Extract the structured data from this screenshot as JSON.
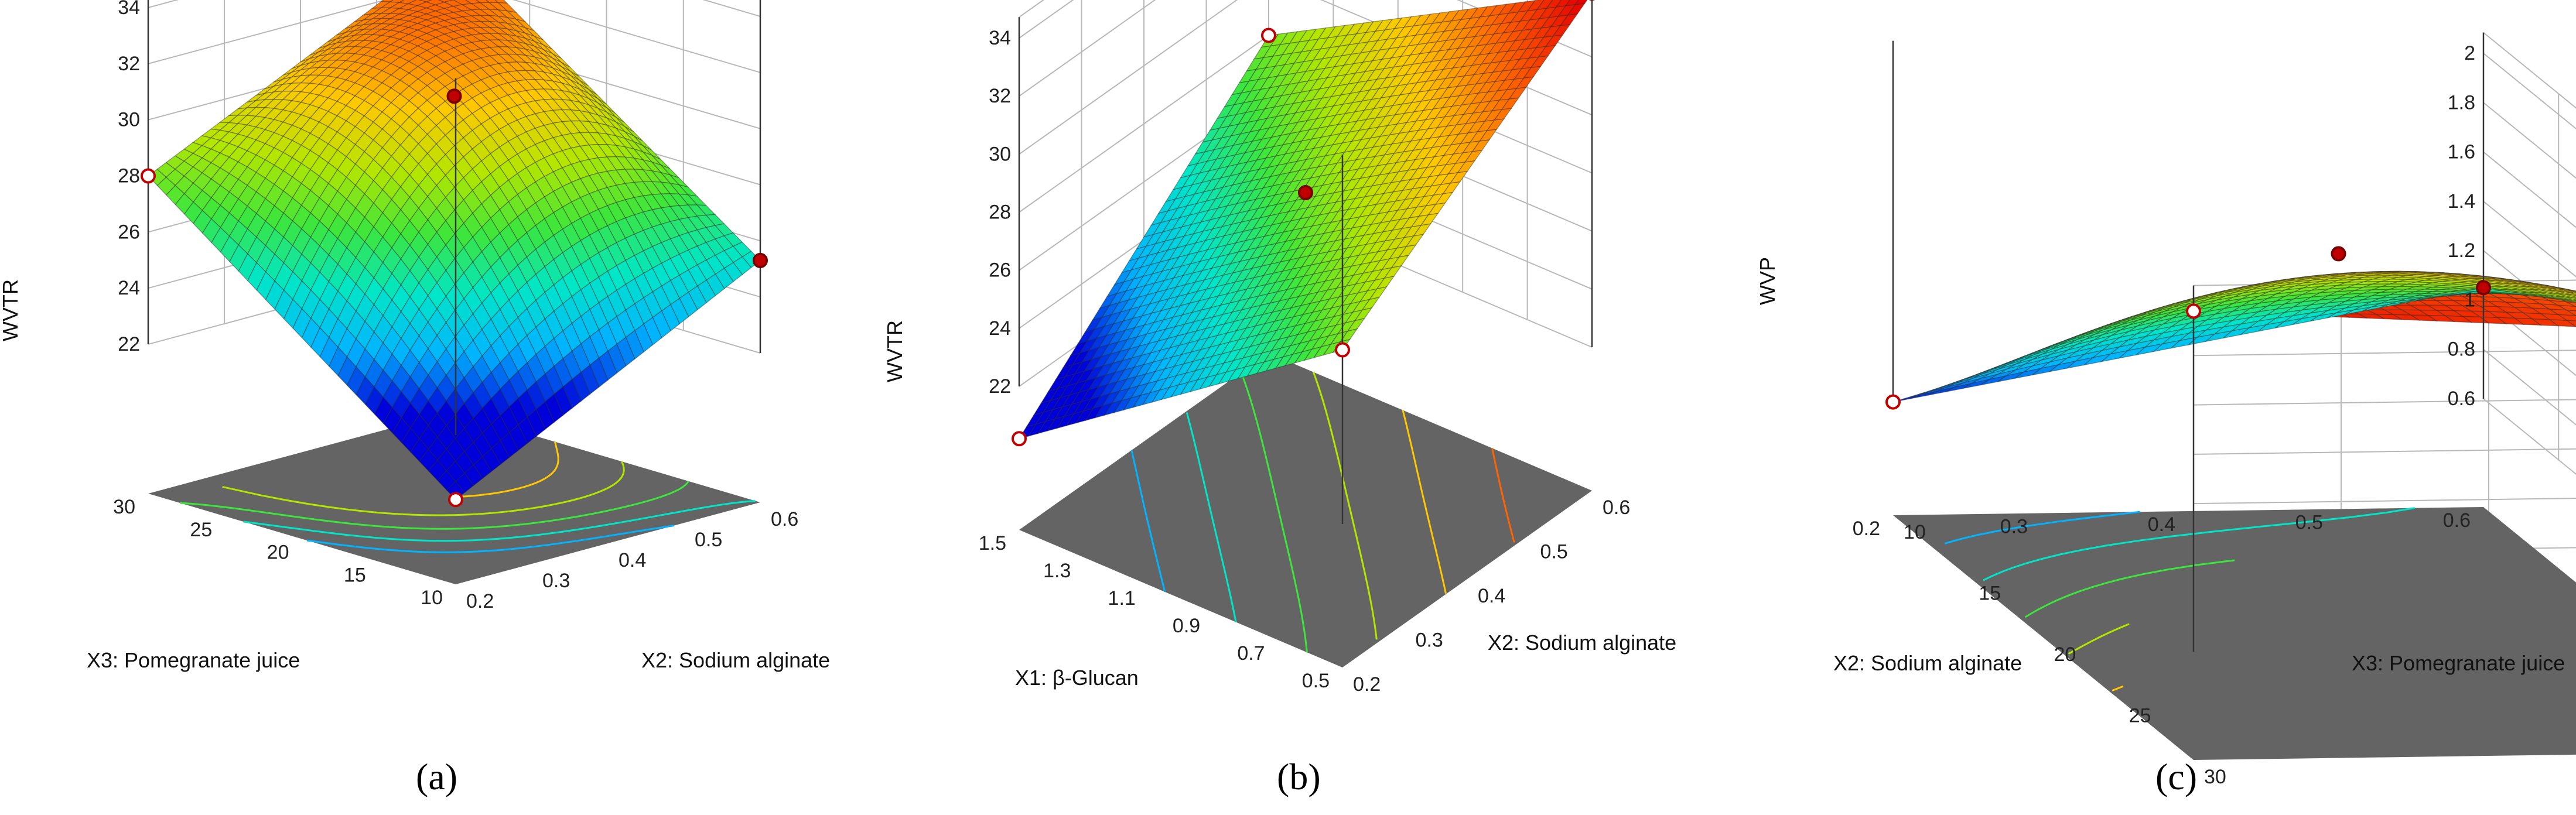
{
  "colors": {
    "floor": "#646464",
    "grid": "#b8b8b8",
    "point_fill": "#c00000",
    "point_outline": "#7a0000",
    "colormap": [
      "#0000d8",
      "#00b4ff",
      "#00e6c8",
      "#3ce63c",
      "#b4e600",
      "#ffc800",
      "#ff6400",
      "#e60000"
    ]
  },
  "chart_data": [
    {
      "type": "surface3d",
      "panel_label": "(a)",
      "zlabel": "WVTR",
      "xlabel": "X2: Sodium alginate",
      "ylabel": "X3: Pomegranate juice",
      "x_range": [
        0.2,
        0.6
      ],
      "y_range": [
        10,
        30
      ],
      "z_range": [
        22,
        34
      ],
      "x_ticks": [
        "0.2",
        "0.3",
        "0.4",
        "0.5",
        "0.6"
      ],
      "y_ticks": [
        "10",
        "15",
        "20",
        "25",
        "30"
      ],
      "z_ticks": [
        "22",
        "24",
        "26",
        "28",
        "30",
        "32",
        "34"
      ],
      "corners_z": {
        "x_min_y_min": 19.7,
        "x_max_y_min": 25.3,
        "x_min_y_max": 28.0,
        "x_max_y_max": 33.2
      },
      "center_z": 30.5,
      "design_points": [
        {
          "x": 0.2,
          "y": 10,
          "z": 19.7,
          "above_surface": false
        },
        {
          "x": 0.6,
          "y": 10,
          "z": 25.3,
          "above_surface": true
        },
        {
          "x": 0.2,
          "y": 30,
          "z": 28.0,
          "above_surface": false
        },
        {
          "x": 0.4,
          "y": 20,
          "z": 31.0,
          "above_surface": true
        }
      ]
    },
    {
      "type": "surface3d",
      "panel_label": "(b)",
      "zlabel": "WVTR",
      "xlabel": "X2: Sodium alginate",
      "ylabel": "X1: β-Glucan",
      "x_range": [
        0.2,
        0.6
      ],
      "y_range": [
        0.5,
        1.5
      ],
      "z_range": [
        22,
        34
      ],
      "x_ticks": [
        "0.2",
        "0.3",
        "0.4",
        "0.5",
        "0.6"
      ],
      "y_ticks": [
        "0.5",
        "0.7",
        "0.9",
        "1.1",
        "1.3",
        "1.5"
      ],
      "z_ticks": [
        "22",
        "24",
        "26",
        "28",
        "30",
        "32",
        "34"
      ],
      "corners_z": {
        "x_min_y_min": 28.0,
        "x_max_y_min": 34.2,
        "x_min_y_max": 20.2,
        "x_max_y_max": 28.0
      },
      "center_z": 27.8,
      "design_points": [
        {
          "x": 0.2,
          "y": 0.5,
          "z": 28.0,
          "above_surface": false
        },
        {
          "x": 0.6,
          "y": 0.5,
          "z": 34.2,
          "above_surface": true
        },
        {
          "x": 0.2,
          "y": 1.5,
          "z": 20.2,
          "above_surface": false
        },
        {
          "x": 0.6,
          "y": 1.5,
          "z": 28.0,
          "above_surface": false
        },
        {
          "x": 0.4,
          "y": 1.0,
          "z": 28.0,
          "above_surface": true
        }
      ]
    },
    {
      "type": "surface3d",
      "panel_label": "(c)",
      "zlabel": "WVP",
      "xlabel": "X3: Pomegranate juice",
      "ylabel": "X2: Sodium alginate",
      "x_range": [
        10,
        30
      ],
      "y_range": [
        0.2,
        0.6
      ],
      "z_range": [
        0.6,
        2.0
      ],
      "x_ticks": [
        "10",
        "15",
        "20",
        "25",
        "30"
      ],
      "y_ticks": [
        "0.2",
        "0.3",
        "0.4",
        "0.5",
        "0.6"
      ],
      "z_ticks": [
        "0.6",
        "0.8",
        "1",
        "1.2",
        "1.4",
        "1.6",
        "1.8",
        "2"
      ],
      "corners_z": {
        "x_min_y_min": 0.62,
        "x_max_y_min": 1.98,
        "x_min_y_max": 1.05,
        "x_max_y_max": 1.85
      },
      "center_z": 1.62,
      "design_points": [
        {
          "x": 10,
          "y": 0.2,
          "z": 0.62,
          "above_surface": false
        },
        {
          "x": 30,
          "y": 0.2,
          "z": 1.98,
          "above_surface": false
        },
        {
          "x": 10,
          "y": 0.6,
          "z": 1.05,
          "above_surface": true
        },
        {
          "x": 30,
          "y": 0.6,
          "z": 1.85,
          "above_surface": true
        },
        {
          "x": 20,
          "y": 0.4,
          "z": 1.7,
          "above_surface": true
        }
      ]
    }
  ]
}
